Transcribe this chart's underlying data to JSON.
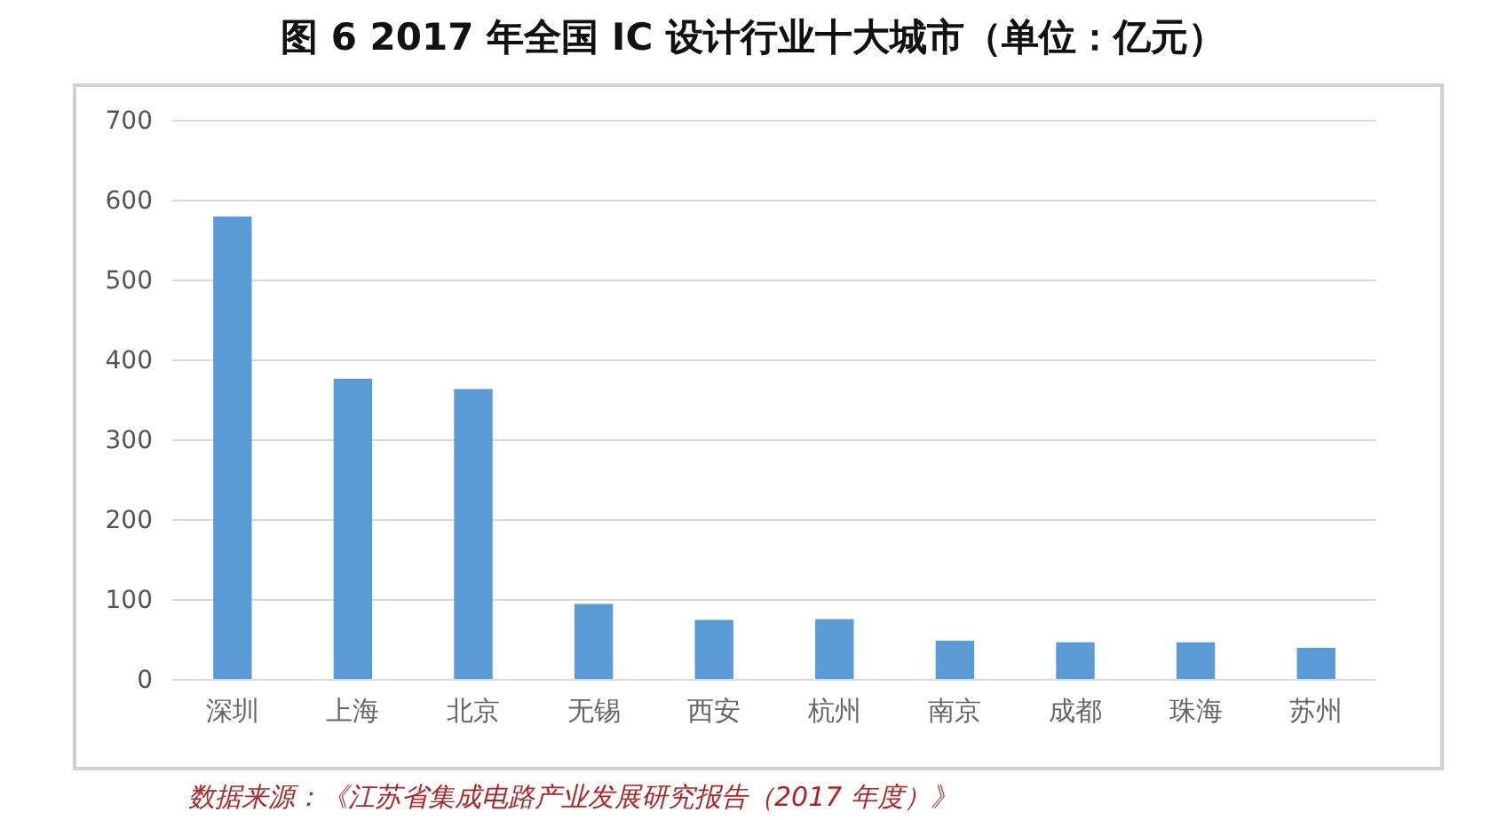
{
  "chart_data": {
    "type": "bar",
    "title": "图 6 2017 年全国 IC 设计行业十大城市（单位：亿元）",
    "categories": [
      "深圳",
      "上海",
      "北京",
      "无锡",
      "西安",
      "杭州",
      "南京",
      "成都",
      "珠海",
      "苏州"
    ],
    "values": [
      580,
      377,
      364,
      95,
      75,
      76,
      49,
      47,
      47,
      40
    ],
    "color": "#5b9bd5",
    "ylim": [
      0,
      700
    ],
    "yticks": [
      0,
      100,
      200,
      300,
      400,
      500,
      600,
      700
    ],
    "grid": "y",
    "annotations": [
      "数据来源：《江苏省集成电路产业发展研究报告（2017 年度）》"
    ]
  }
}
